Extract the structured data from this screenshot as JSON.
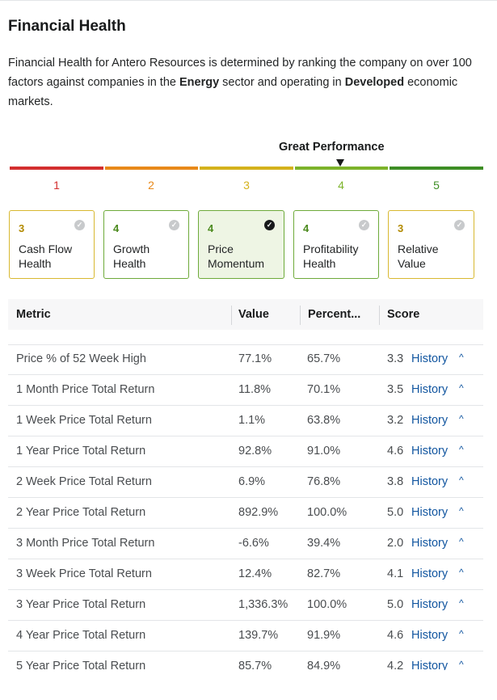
{
  "title": "Financial Health",
  "description": {
    "part1": "Financial Health for Antero Resources is determined by ranking the company on over 100 factors against companies in the ",
    "sector": "Energy",
    "part2": " sector and operating in ",
    "market": "Developed",
    "part3": " economic markets."
  },
  "performance": {
    "label": "Great Performance",
    "scale": [
      {
        "num": "1",
        "color": "#d32f2f"
      },
      {
        "num": "2",
        "color": "#e8891a"
      },
      {
        "num": "3",
        "color": "#d4b21c"
      },
      {
        "num": "4",
        "color": "#7cb32a"
      },
      {
        "num": "5",
        "color": "#3e8e25"
      }
    ]
  },
  "cards": [
    {
      "score": "3",
      "line1": "Cash Flow",
      "line2": "Health",
      "border": "#d8b830",
      "num_color": "#b28a00"
    },
    {
      "score": "4",
      "line1": "Growth",
      "line2": "Health",
      "border": "#6eaa3a",
      "num_color": "#4c8a1e"
    },
    {
      "score": "4",
      "line1": "Price",
      "line2": "Momentum",
      "border": "#6eaa3a",
      "num_color": "#4c8a1e"
    },
    {
      "score": "4",
      "line1": "Profitability",
      "line2": "Health",
      "border": "#6eaa3a",
      "num_color": "#4c8a1e"
    },
    {
      "score": "3",
      "line1": "Relative",
      "line2": "Value",
      "border": "#d8b830",
      "num_color": "#b28a00"
    }
  ],
  "table": {
    "headers": {
      "metric": "Metric",
      "value": "Value",
      "percentile": "Percent...",
      "score": "Score"
    },
    "history_label": "History",
    "rows": [
      {
        "metric": "Price % of 52 Week High",
        "value": "77.1%",
        "pct": "65.7%",
        "score": "3.3"
      },
      {
        "metric": "1 Month Price Total Return",
        "value": "11.8%",
        "pct": "70.1%",
        "score": "3.5"
      },
      {
        "metric": "1 Week Price Total Return",
        "value": "1.1%",
        "pct": "63.8%",
        "score": "3.2"
      },
      {
        "metric": "1 Year Price Total Return",
        "value": "92.8%",
        "pct": "91.0%",
        "score": "4.6"
      },
      {
        "metric": "2 Week Price Total Return",
        "value": "6.9%",
        "pct": "76.8%",
        "score": "3.8"
      },
      {
        "metric": "2 Year Price Total Return",
        "value": "892.9%",
        "pct": "100.0%",
        "score": "5.0"
      },
      {
        "metric": "3 Month Price Total Return",
        "value": "-6.6%",
        "pct": "39.4%",
        "score": "2.0"
      },
      {
        "metric": "3 Week Price Total Return",
        "value": "12.4%",
        "pct": "82.7%",
        "score": "4.1"
      },
      {
        "metric": "3 Year Price Total Return",
        "value": "1,336.3%",
        "pct": "100.0%",
        "score": "5.0"
      },
      {
        "metric": "4 Year Price Total Return",
        "value": "139.7%",
        "pct": "91.9%",
        "score": "4.6"
      },
      {
        "metric": "5 Year Price Total Return",
        "value": "85.7%",
        "pct": "84.9%",
        "score": "4.2"
      }
    ]
  }
}
